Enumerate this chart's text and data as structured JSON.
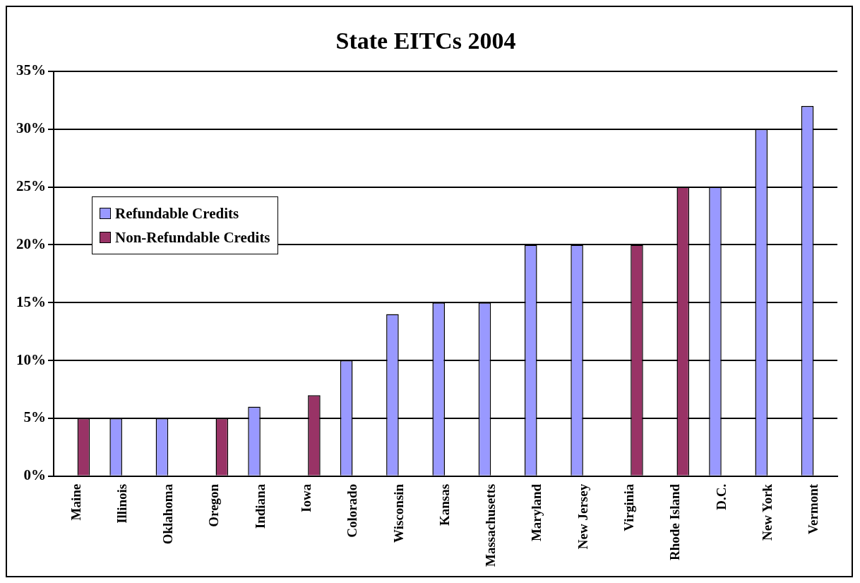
{
  "chart_data": {
    "type": "bar",
    "title": "State EITCs 2004",
    "categories": [
      "Maine",
      "Illinois",
      "Oklahoma",
      "Oregon",
      "Indiana",
      "Iowa",
      "Colorado",
      "Wisconsin",
      "Kansas",
      "Massachusetts",
      "Maryland",
      "New Jersey",
      "Virginia",
      "Rhode Island",
      "D.C.",
      "New York",
      "Vermont"
    ],
    "series": [
      {
        "name": "Refundable Credits",
        "color": "#9999ff",
        "values": [
          null,
          5,
          5,
          null,
          6,
          null,
          10,
          14,
          15,
          15,
          20,
          20,
          null,
          null,
          25,
          30,
          32
        ]
      },
      {
        "name": "Non-Refundable Credits",
        "color": "#993366",
        "values": [
          5,
          null,
          null,
          5,
          null,
          7,
          null,
          null,
          null,
          null,
          null,
          null,
          20,
          25,
          null,
          null,
          null
        ]
      }
    ],
    "ylim": [
      0,
      35
    ],
    "yticks": [
      {
        "value": 0,
        "label": "0%"
      },
      {
        "value": 5,
        "label": "5%"
      },
      {
        "value": 10,
        "label": "10%"
      },
      {
        "value": 15,
        "label": "15%"
      },
      {
        "value": 20,
        "label": "20%"
      },
      {
        "value": 25,
        "label": "25%"
      },
      {
        "value": 30,
        "label": "30%"
      },
      {
        "value": 35,
        "label": "35%"
      }
    ],
    "grid": "y",
    "legend": "left"
  }
}
